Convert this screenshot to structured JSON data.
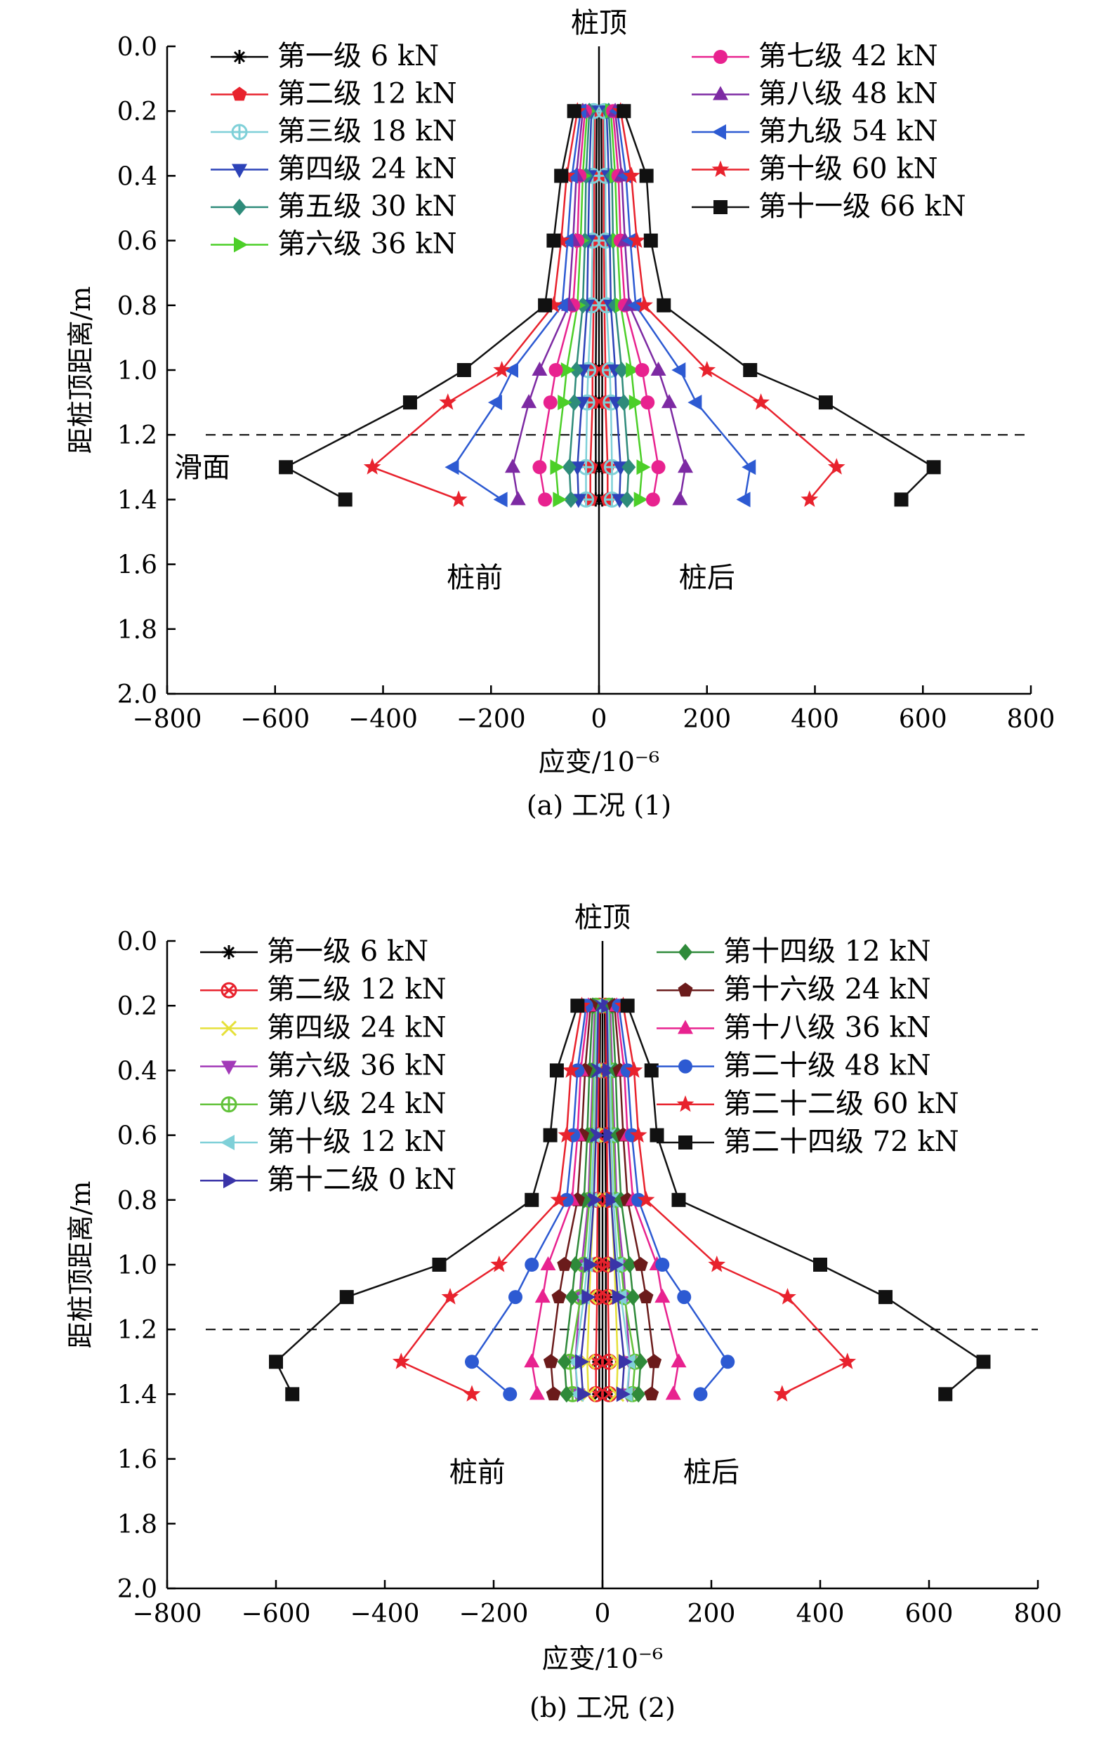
{
  "charts": [
    {
      "type": "line",
      "caption": "(a) 工况 (1)",
      "xlabel": "应变/10⁻⁶",
      "ylabel": "距桩顶距离/m",
      "xlim": [
        -800,
        800
      ],
      "ylim": [
        0,
        2.0
      ],
      "y_inverted": true,
      "xticks": [
        -800,
        -600,
        -400,
        -200,
        0,
        200,
        400,
        600,
        800
      ],
      "yticks": [
        0.0,
        0.2,
        0.4,
        0.6,
        0.8,
        1.0,
        1.2,
        1.4,
        1.6,
        1.8,
        2.0
      ],
      "ytick_labels": [
        "0.0",
        "0.2",
        "0.4",
        "0.6",
        "0.8",
        "1.0",
        "1.2",
        "1.4",
        "1.6",
        "1.8",
        "2.0"
      ],
      "xtick_labels": [
        "−800",
        "−600",
        "−400",
        "−200",
        "0",
        "200",
        "400",
        "600",
        "800"
      ],
      "annotations": {
        "top": "桩顶",
        "front": "桩前",
        "back": "桩后",
        "slip": "滑面"
      },
      "slip_surface_y": 1.2,
      "legend_left": "top-left",
      "legend_right": "top-right",
      "series": [
        {
          "name": "第一级 6 kN",
          "color": "#000000",
          "marker": "asterisk",
          "col": 0,
          "front": [
            -4,
            -5,
            -5,
            -5,
            -6,
            -6,
            -6,
            -6
          ],
          "back": [
            4,
            5,
            5,
            5,
            6,
            6,
            6,
            6
          ]
        },
        {
          "name": "第二级 12 kN",
          "color": "#e8222d",
          "marker": "pentagon",
          "col": 0,
          "front": [
            -8,
            -9,
            -9,
            -10,
            -12,
            -12,
            -16,
            -16
          ],
          "back": [
            8,
            9,
            9,
            10,
            12,
            12,
            16,
            16
          ]
        },
        {
          "name": "第三级 18 kN",
          "color": "#7fd0d8",
          "marker": "circle-plus",
          "col": 0,
          "front": [
            -10,
            -12,
            -12,
            -14,
            -20,
            -22,
            -24,
            -24
          ],
          "back": [
            10,
            12,
            12,
            14,
            20,
            22,
            24,
            24
          ]
        },
        {
          "name": "第四级 24 kN",
          "color": "#2c42b8",
          "marker": "triangle-down",
          "col": 0,
          "front": [
            -14,
            -18,
            -20,
            -22,
            -30,
            -32,
            -40,
            -38
          ],
          "back": [
            14,
            18,
            20,
            22,
            30,
            32,
            40,
            38
          ]
        },
        {
          "name": "第五级 30 kN",
          "color": "#2e8b7a",
          "marker": "diamond",
          "col": 0,
          "front": [
            -18,
            -24,
            -26,
            -30,
            -42,
            -46,
            -55,
            -52
          ],
          "back": [
            18,
            24,
            26,
            30,
            42,
            46,
            55,
            52
          ]
        },
        {
          "name": "第六级 36 kN",
          "color": "#4ccf28",
          "marker": "triangle-right",
          "col": 0,
          "front": [
            -22,
            -30,
            -34,
            -40,
            -60,
            -66,
            -80,
            -75
          ],
          "back": [
            22,
            30,
            34,
            40,
            60,
            66,
            80,
            75
          ]
        },
        {
          "name": "第七级 42 kN",
          "color": "#e8228f",
          "marker": "circle",
          "col": 1,
          "front": [
            -26,
            -36,
            -40,
            -48,
            -80,
            -90,
            -110,
            -100
          ],
          "back": [
            26,
            36,
            40,
            48,
            80,
            90,
            110,
            100
          ]
        },
        {
          "name": "第八级 48 kN",
          "color": "#7d2aa3",
          "marker": "triangle-up",
          "col": 1,
          "front": [
            -30,
            -42,
            -48,
            -56,
            -110,
            -130,
            -160,
            -150
          ],
          "back": [
            30,
            42,
            48,
            56,
            110,
            130,
            160,
            150
          ]
        },
        {
          "name": "第九级 54 kN",
          "color": "#2d5ad2",
          "marker": "triangle-left",
          "col": 1,
          "front": [
            -34,
            -50,
            -58,
            -68,
            -160,
            -190,
            -270,
            -180
          ],
          "back": [
            34,
            50,
            58,
            68,
            150,
            180,
            280,
            270
          ]
        },
        {
          "name": "第十级 60 kN",
          "color": "#e8222d",
          "marker": "star",
          "col": 1,
          "front": [
            -40,
            -60,
            -70,
            -84,
            -180,
            -280,
            -420,
            -260
          ],
          "back": [
            40,
            60,
            70,
            84,
            200,
            300,
            440,
            390
          ]
        },
        {
          "name": "第十一级 66 kN",
          "color": "#111111",
          "marker": "square",
          "col": 1,
          "front": [
            -46,
            -70,
            -84,
            -100,
            -250,
            -350,
            -580,
            -470
          ],
          "back": [
            46,
            88,
            96,
            120,
            280,
            420,
            620,
            560
          ]
        }
      ]
    },
    {
      "type": "line",
      "caption": "(b) 工况 (2)",
      "xlabel": "应变/10⁻⁶",
      "ylabel": "距桩顶距离/m",
      "xlim": [
        -800,
        800
      ],
      "ylim": [
        0,
        2.0
      ],
      "y_inverted": true,
      "xticks": [
        -800,
        -600,
        -400,
        -200,
        0,
        200,
        400,
        600,
        800
      ],
      "yticks": [
        0.0,
        0.2,
        0.4,
        0.6,
        0.8,
        1.0,
        1.2,
        1.4,
        1.6,
        1.8,
        2.0
      ],
      "ytick_labels": [
        "0.0",
        "0.2",
        "0.4",
        "0.6",
        "0.8",
        "1.0",
        "1.2",
        "1.4",
        "1.6",
        "1.8",
        "2.0"
      ],
      "xtick_labels": [
        "−800",
        "−600",
        "−400",
        "−200",
        "0",
        "200",
        "400",
        "600",
        "800"
      ],
      "annotations": {
        "top": "桩顶",
        "front": "桩前",
        "back": "桩后",
        "slip": ""
      },
      "slip_surface_y": 1.2,
      "legend_left": "top-left",
      "legend_right": "top-right",
      "series": [
        {
          "name": "第一级 6 kN",
          "color": "#000000",
          "marker": "asterisk",
          "col": 0,
          "front": [
            -4,
            -5,
            -5,
            -6,
            -6,
            -6,
            -6,
            -6
          ],
          "back": [
            4,
            5,
            5,
            6,
            6,
            6,
            6,
            6
          ]
        },
        {
          "name": "第二级 12 kN",
          "color": "#e8222d",
          "marker": "circle-x",
          "col": 0,
          "front": [
            -6,
            -7,
            -8,
            -9,
            -10,
            -10,
            -12,
            -12
          ],
          "back": [
            6,
            7,
            8,
            9,
            10,
            10,
            12,
            12
          ]
        },
        {
          "name": "第四级 24 kN",
          "color": "#e6e03a",
          "marker": "x",
          "col": 0,
          "front": [
            -10,
            -12,
            -14,
            -16,
            -22,
            -24,
            -28,
            -26
          ],
          "back": [
            10,
            12,
            14,
            16,
            22,
            24,
            28,
            26
          ]
        },
        {
          "name": "第六级 36 kN",
          "color": "#a23ab8",
          "marker": "triangle-down",
          "col": 0,
          "front": [
            -14,
            -18,
            -22,
            -26,
            -38,
            -42,
            -50,
            -46
          ],
          "back": [
            14,
            18,
            22,
            26,
            38,
            42,
            50,
            46
          ]
        },
        {
          "name": "第八级 24 kN",
          "color": "#62c23a",
          "marker": "circle-plus",
          "col": 0,
          "front": [
            -12,
            -16,
            -20,
            -24,
            -34,
            -40,
            -60,
            -55
          ],
          "back": [
            12,
            16,
            20,
            24,
            34,
            40,
            60,
            55
          ]
        },
        {
          "name": "第十级 12 kN",
          "color": "#7fd0d8",
          "marker": "triangle-left",
          "col": 0,
          "front": [
            -10,
            -14,
            -16,
            -20,
            -28,
            -34,
            -50,
            -45
          ],
          "back": [
            10,
            14,
            16,
            20,
            28,
            34,
            50,
            45
          ]
        },
        {
          "name": "第十二级 0 kN",
          "color": "#3a34a8",
          "marker": "triangle-right",
          "col": 0,
          "front": [
            -8,
            -10,
            -12,
            -16,
            -24,
            -28,
            -40,
            -36
          ],
          "back": [
            8,
            10,
            12,
            16,
            24,
            28,
            40,
            36
          ]
        },
        {
          "name": "第十四级 12 kN",
          "color": "#2f8a3a",
          "marker": "diamond",
          "col": 1,
          "front": [
            -18,
            -24,
            -28,
            -34,
            -50,
            -56,
            -70,
            -66
          ],
          "back": [
            18,
            24,
            28,
            34,
            50,
            56,
            70,
            66
          ]
        },
        {
          "name": "第十六级 24 kN",
          "color": "#6b1b1b",
          "marker": "pentagon",
          "col": 1,
          "front": [
            -22,
            -32,
            -38,
            -46,
            -70,
            -80,
            -95,
            -90
          ],
          "back": [
            22,
            32,
            38,
            46,
            70,
            80,
            95,
            90
          ]
        },
        {
          "name": "第十八级 36 kN",
          "color": "#e8228f",
          "marker": "triangle-up",
          "col": 1,
          "front": [
            -26,
            -40,
            -46,
            -56,
            -100,
            -110,
            -130,
            -120
          ],
          "back": [
            26,
            40,
            46,
            56,
            100,
            110,
            140,
            130
          ]
        },
        {
          "name": "第二十级 48 kN",
          "color": "#2d5ad2",
          "marker": "circle",
          "col": 1,
          "front": [
            -30,
            -46,
            -54,
            -66,
            -130,
            -160,
            -240,
            -170
          ],
          "back": [
            30,
            46,
            54,
            66,
            110,
            150,
            230,
            180
          ]
        },
        {
          "name": "第二十二级 60 kN",
          "color": "#e8222d",
          "marker": "star",
          "col": 1,
          "front": [
            -38,
            -58,
            -66,
            -80,
            -190,
            -280,
            -370,
            -240
          ],
          "back": [
            38,
            58,
            66,
            80,
            210,
            340,
            450,
            330
          ]
        },
        {
          "name": "第二十四级 72 kN",
          "color": "#111111",
          "marker": "square",
          "col": 1,
          "front": [
            -46,
            -84,
            -96,
            -130,
            -300,
            -470,
            -600,
            -570
          ],
          "back": [
            46,
            90,
            100,
            140,
            400,
            520,
            700,
            630
          ]
        }
      ]
    }
  ],
  "depths": [
    0.2,
    0.4,
    0.6,
    0.8,
    1.0,
    1.1,
    1.3,
    1.4
  ]
}
